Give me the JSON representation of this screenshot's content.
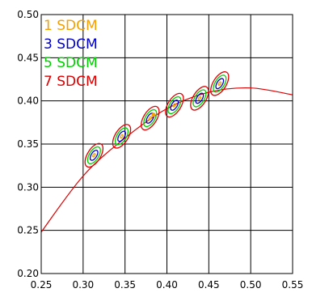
{
  "chart_data": {
    "type": "scatter",
    "title": "",
    "xlabel": "",
    "ylabel": "",
    "xlim": [
      0.25,
      0.55
    ],
    "ylim": [
      0.2,
      0.5
    ],
    "x_ticks": [
      "0.25",
      "0.30",
      "0.35",
      "0.40",
      "0.45",
      "0.50",
      "0.55"
    ],
    "y_ticks": [
      "0.20",
      "0.25",
      "0.30",
      "0.35",
      "0.40",
      "0.45",
      "0.50"
    ],
    "grid": true,
    "legend_position": "top-left",
    "legend": [
      {
        "label": "1 SDCM",
        "color": "#f5a000"
      },
      {
        "label": "3 SDCM",
        "color": "#0000c8"
      },
      {
        "label": "5 SDCM",
        "color": "#00d000"
      },
      {
        "label": "7 SDCM",
        "color": "#dd0000"
      }
    ],
    "curve": {
      "name": "",
      "color": "#dd0000",
      "points": [
        [
          0.25,
          0.248
        ],
        [
          0.3,
          0.313
        ],
        [
          0.35,
          0.357
        ],
        [
          0.4,
          0.391
        ],
        [
          0.45,
          0.41
        ],
        [
          0.5,
          0.415
        ],
        [
          0.55,
          0.407
        ]
      ]
    },
    "ellipse_centers": [
      {
        "x": 0.313,
        "y": 0.337
      },
      {
        "x": 0.346,
        "y": 0.359
      },
      {
        "x": 0.38,
        "y": 0.38
      },
      {
        "x": 0.409,
        "y": 0.395
      },
      {
        "x": 0.439,
        "y": 0.403
      },
      {
        "x": 0.463,
        "y": 0.42
      }
    ],
    "extra_point": {
      "x": 0.384,
      "y": 0.384,
      "color": "#f5a000"
    },
    "sdcm_levels": [
      1,
      3,
      5,
      7
    ]
  }
}
